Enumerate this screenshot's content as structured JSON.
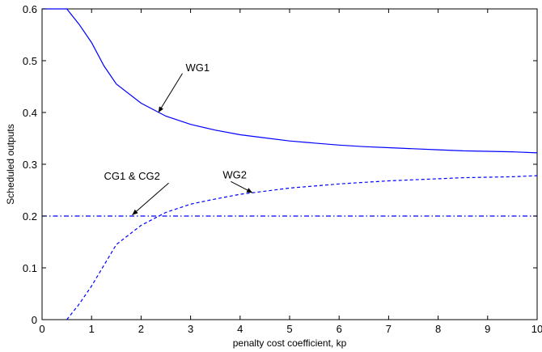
{
  "chart_data": {
    "type": "line",
    "title": "",
    "xlabel": "penalty cost coefficient, kp",
    "ylabel": "Scheduled outputs",
    "xlim": [
      0,
      10
    ],
    "ylim": [
      0,
      0.6
    ],
    "xticks": [
      "0",
      "1",
      "2",
      "3",
      "4",
      "5",
      "6",
      "7",
      "8",
      "9",
      "10"
    ],
    "yticks": [
      "0",
      "0.1",
      "0.2",
      "0.3",
      "0.4",
      "0.5",
      "0.6"
    ],
    "grid": false,
    "series_color": "#0000ff",
    "series": [
      {
        "name": "WG1",
        "style": "solid",
        "x": [
          0,
          0.5,
          0.75,
          1,
          1.25,
          1.5,
          2,
          2.5,
          3,
          3.5,
          4,
          4.5,
          5,
          5.5,
          6,
          6.5,
          7,
          7.5,
          8,
          8.5,
          9,
          9.5,
          10
        ],
        "y": [
          0.6,
          0.6,
          0.57,
          0.535,
          0.49,
          0.455,
          0.418,
          0.393,
          0.377,
          0.366,
          0.357,
          0.351,
          0.345,
          0.341,
          0.337,
          0.334,
          0.332,
          0.33,
          0.328,
          0.326,
          0.325,
          0.324,
          0.322
        ]
      },
      {
        "name": "WG2",
        "style": "dashed",
        "x": [
          0.5,
          0.75,
          1,
          1.25,
          1.5,
          2,
          2.5,
          3,
          3.5,
          4,
          4.5,
          5,
          5.5,
          6,
          6.5,
          7,
          7.5,
          8,
          8.5,
          9,
          9.5,
          10
        ],
        "y": [
          0,
          0.03,
          0.065,
          0.105,
          0.145,
          0.182,
          0.207,
          0.223,
          0.233,
          0.242,
          0.248,
          0.254,
          0.258,
          0.262,
          0.265,
          0.268,
          0.27,
          0.272,
          0.274,
          0.275,
          0.276,
          0.278
        ]
      },
      {
        "name": "CG1 & CG2",
        "style": "dashdot",
        "x": [
          0,
          10
        ],
        "y": [
          0.2,
          0.2
        ]
      }
    ],
    "annotations": [
      {
        "text": "WG1",
        "target": [
          2.35,
          0.4
        ],
        "label_at": [
          2.9,
          0.48
        ]
      },
      {
        "text": "WG2",
        "target": [
          4.25,
          0.245
        ],
        "label_at": [
          3.65,
          0.273
        ]
      },
      {
        "text": "CG1 & CG2",
        "target": [
          1.82,
          0.202
        ],
        "label_at": [
          1.25,
          0.27
        ]
      }
    ]
  }
}
